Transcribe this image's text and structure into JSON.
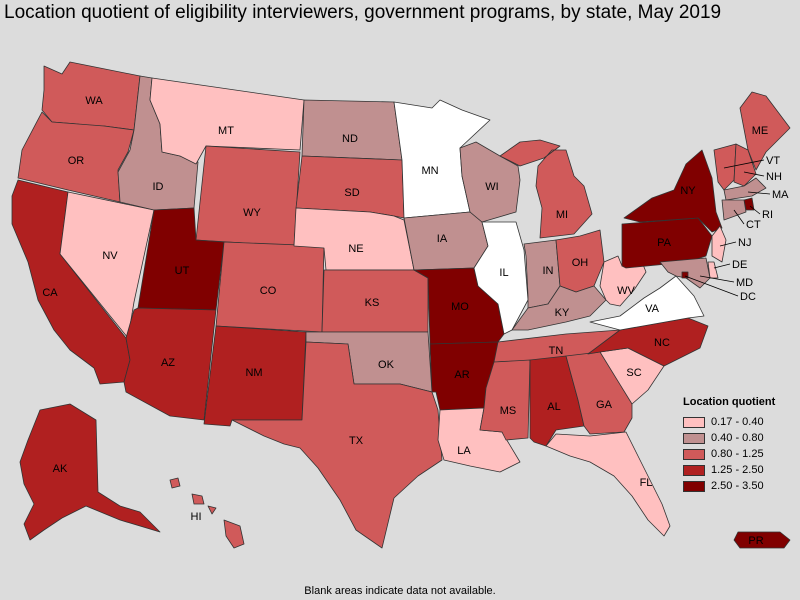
{
  "title": "Location quotient of eligibility interviewers, government programs, by state, May 2019",
  "footnote": "Blank areas indicate data not available.",
  "legend": {
    "title": "Location quotient",
    "items": [
      {
        "label": "0.17 - 0.40",
        "color": "#ffc0c0"
      },
      {
        "label": "0.40 - 0.80",
        "color": "#c09090"
      },
      {
        "label": "0.80 - 1.25",
        "color": "#d05a5a"
      },
      {
        "label": "1.25 - 2.50",
        "color": "#b02020"
      },
      {
        "label": "2.50 - 3.50",
        "color": "#800000"
      }
    ]
  },
  "no_data_color": "#ffffff",
  "states": [
    {
      "abbr": "WA",
      "class": 2
    },
    {
      "abbr": "OR",
      "class": 2
    },
    {
      "abbr": "CA",
      "class": 3
    },
    {
      "abbr": "NV",
      "class": 0
    },
    {
      "abbr": "ID",
      "class": 1
    },
    {
      "abbr": "MT",
      "class": 0
    },
    {
      "abbr": "WY",
      "class": 2
    },
    {
      "abbr": "UT",
      "class": 4
    },
    {
      "abbr": "AZ",
      "class": 3
    },
    {
      "abbr": "CO",
      "class": 2
    },
    {
      "abbr": "NM",
      "class": 3
    },
    {
      "abbr": "ND",
      "class": 1
    },
    {
      "abbr": "SD",
      "class": 2
    },
    {
      "abbr": "NE",
      "class": 0
    },
    {
      "abbr": "KS",
      "class": 2
    },
    {
      "abbr": "OK",
      "class": 1
    },
    {
      "abbr": "TX",
      "class": 2
    },
    {
      "abbr": "MN",
      "class": null
    },
    {
      "abbr": "IA",
      "class": 1
    },
    {
      "abbr": "MO",
      "class": 4
    },
    {
      "abbr": "AR",
      "class": 4
    },
    {
      "abbr": "LA",
      "class": 0
    },
    {
      "abbr": "WI",
      "class": 1
    },
    {
      "abbr": "IL",
      "class": null
    },
    {
      "abbr": "MI",
      "class": 2
    },
    {
      "abbr": "IN",
      "class": 1
    },
    {
      "abbr": "OH",
      "class": 2
    },
    {
      "abbr": "KY",
      "class": 1
    },
    {
      "abbr": "TN",
      "class": 2
    },
    {
      "abbr": "MS",
      "class": 2
    },
    {
      "abbr": "AL",
      "class": 3
    },
    {
      "abbr": "GA",
      "class": 2
    },
    {
      "abbr": "FL",
      "class": 0
    },
    {
      "abbr": "SC",
      "class": 0
    },
    {
      "abbr": "NC",
      "class": 3
    },
    {
      "abbr": "VA",
      "class": null
    },
    {
      "abbr": "WV",
      "class": 0
    },
    {
      "abbr": "PA",
      "class": 4
    },
    {
      "abbr": "NY",
      "class": 4
    },
    {
      "abbr": "ME",
      "class": 2
    },
    {
      "abbr": "VT",
      "class": 2
    },
    {
      "abbr": "NH",
      "class": 2
    },
    {
      "abbr": "MA",
      "class": 1
    },
    {
      "abbr": "RI",
      "class": 4
    },
    {
      "abbr": "CT",
      "class": 1
    },
    {
      "abbr": "NJ",
      "class": 0
    },
    {
      "abbr": "DE",
      "class": 0
    },
    {
      "abbr": "MD",
      "class": 1
    },
    {
      "abbr": "DC",
      "class": 4
    },
    {
      "abbr": "AK",
      "class": 3
    },
    {
      "abbr": "HI",
      "class": 2
    },
    {
      "abbr": "PR",
      "class": 4
    }
  ]
}
